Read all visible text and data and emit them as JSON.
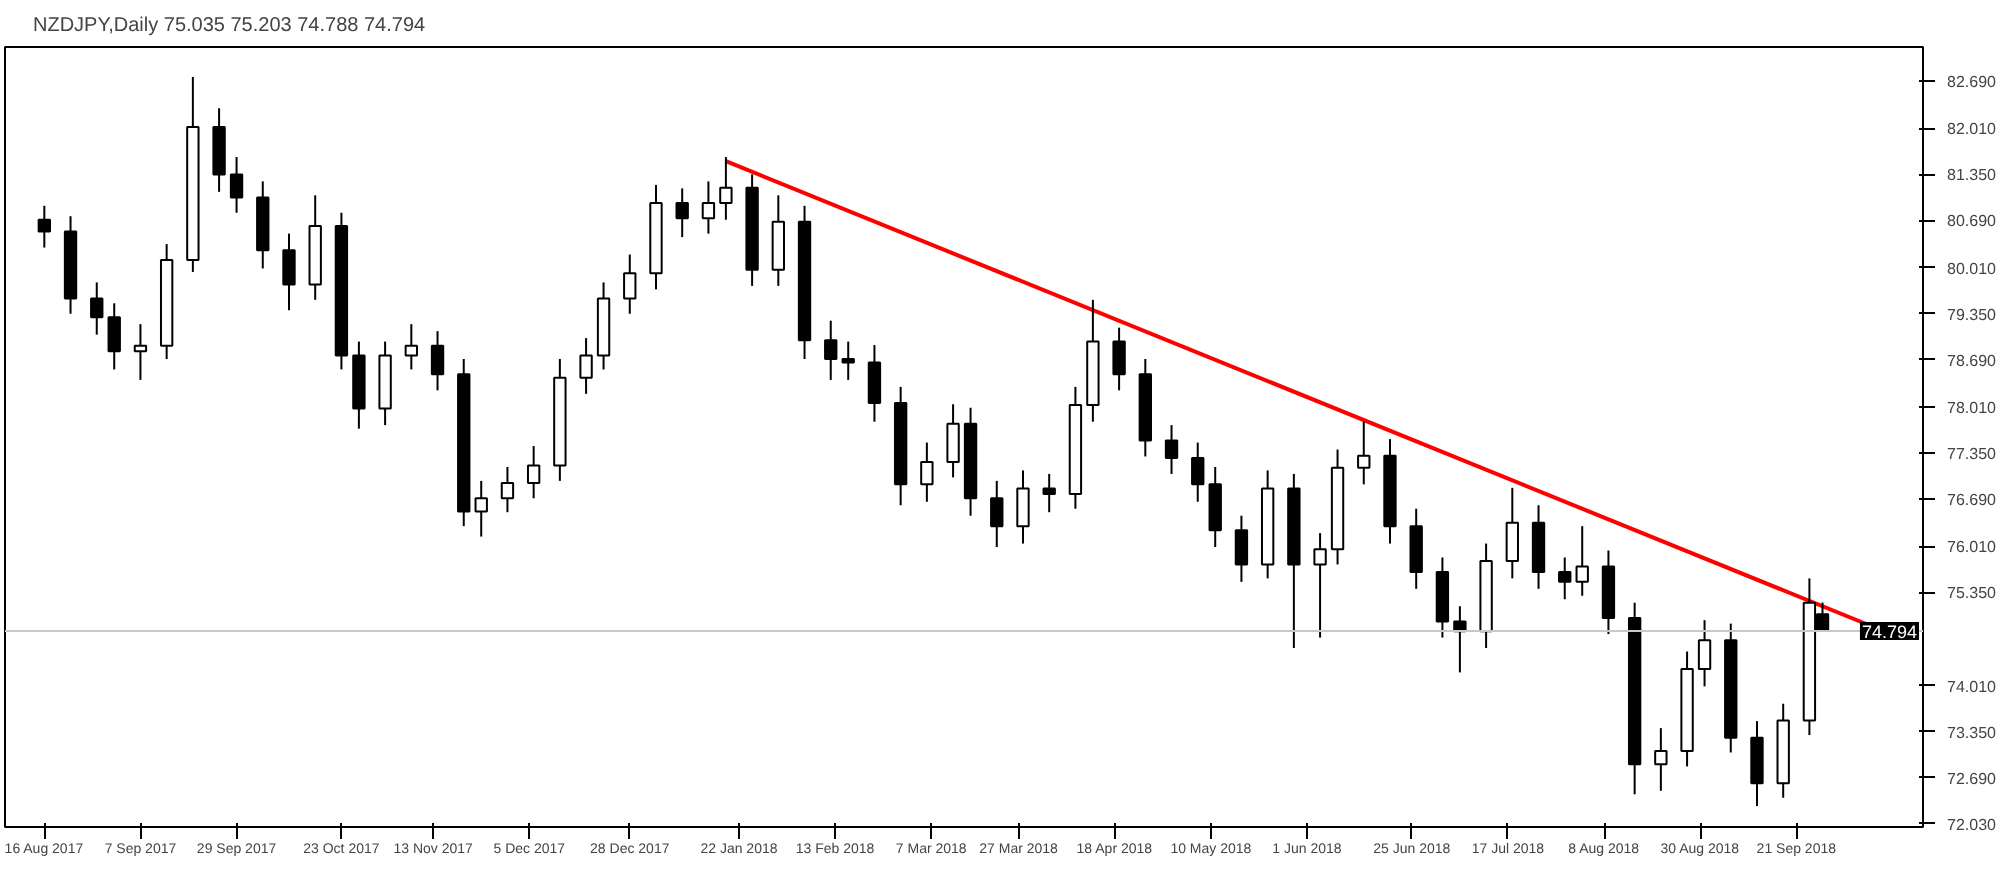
{
  "chart_data": {
    "type": "candlestick",
    "title": "NZDJPY,Daily 75.035 75.203 74.788 74.794",
    "x": [
      "2017-08-16",
      "2017-08-22",
      "2017-08-28",
      "2017-09-01",
      "2017-09-07",
      "2017-09-13",
      "2017-09-19",
      "2017-09-25",
      "2017-09-29",
      "2017-10-05",
      "2017-10-11",
      "2017-10-17",
      "2017-10-23",
      "2017-10-27",
      "2017-11-02",
      "2017-11-08",
      "2017-11-14",
      "2017-11-20",
      "2017-11-24",
      "2017-11-30",
      "2017-12-06",
      "2017-12-12",
      "2017-12-18",
      "2017-12-22",
      "2017-12-28",
      "2018-01-03",
      "2018-01-09",
      "2018-01-15",
      "2018-01-19",
      "2018-01-25",
      "2018-01-31",
      "2018-02-06",
      "2018-02-12",
      "2018-02-16",
      "2018-02-22",
      "2018-02-28",
      "2018-03-06",
      "2018-03-12",
      "2018-03-16",
      "2018-03-22",
      "2018-03-28",
      "2018-04-03",
      "2018-04-09",
      "2018-04-13",
      "2018-04-19",
      "2018-04-25",
      "2018-05-01",
      "2018-05-07",
      "2018-05-11",
      "2018-05-17",
      "2018-05-23",
      "2018-05-29",
      "2018-06-04",
      "2018-06-08",
      "2018-06-14",
      "2018-06-20",
      "2018-06-26",
      "2018-07-02",
      "2018-07-06",
      "2018-07-12",
      "2018-07-18",
      "2018-07-24",
      "2018-07-30",
      "2018-08-03",
      "2018-08-09",
      "2018-08-15",
      "2018-08-21",
      "2018-08-27",
      "2018-08-31",
      "2018-09-06",
      "2018-09-12",
      "2018-09-18",
      "2018-09-24",
      "2018-09-27"
    ],
    "ohlc": [
      [
        80.7,
        80.9,
        80.3,
        80.53
      ],
      [
        80.53,
        80.75,
        79.35,
        79.57
      ],
      [
        79.57,
        79.8,
        79.05,
        79.3
      ],
      [
        79.3,
        79.5,
        78.55,
        78.81
      ],
      [
        78.81,
        79.2,
        78.4,
        78.89
      ],
      [
        78.89,
        80.35,
        78.7,
        80.12
      ],
      [
        80.12,
        82.75,
        79.95,
        82.03
      ],
      [
        82.03,
        82.3,
        81.1,
        81.35
      ],
      [
        81.35,
        81.6,
        80.8,
        81.02
      ],
      [
        81.02,
        81.25,
        80.0,
        80.26
      ],
      [
        80.26,
        80.5,
        79.4,
        79.77
      ],
      [
        79.77,
        81.05,
        79.55,
        80.61
      ],
      [
        80.61,
        80.8,
        78.55,
        78.75
      ],
      [
        78.75,
        78.95,
        77.7,
        77.99
      ],
      [
        77.99,
        78.95,
        77.75,
        78.75
      ],
      [
        78.75,
        79.2,
        78.55,
        78.89
      ],
      [
        78.89,
        79.1,
        78.25,
        78.48
      ],
      [
        78.48,
        78.7,
        76.3,
        76.51
      ],
      [
        76.51,
        76.95,
        76.15,
        76.7
      ],
      [
        76.7,
        77.15,
        76.5,
        76.92
      ],
      [
        76.92,
        77.45,
        76.7,
        77.17
      ],
      [
        77.17,
        78.7,
        76.95,
        78.43
      ],
      [
        78.43,
        79.0,
        78.2,
        78.75
      ],
      [
        78.75,
        79.8,
        78.55,
        79.57
      ],
      [
        79.57,
        80.2,
        79.35,
        79.93
      ],
      [
        79.93,
        81.2,
        79.7,
        80.94
      ],
      [
        80.94,
        81.15,
        80.45,
        80.72
      ],
      [
        80.72,
        81.25,
        80.5,
        80.94
      ],
      [
        80.94,
        81.6,
        80.7,
        81.16
      ],
      [
        81.16,
        81.35,
        79.75,
        79.98
      ],
      [
        79.98,
        81.05,
        79.75,
        80.67
      ],
      [
        80.67,
        80.9,
        78.7,
        78.97
      ],
      [
        78.97,
        79.25,
        78.4,
        78.7
      ],
      [
        78.7,
        78.95,
        78.4,
        78.65
      ],
      [
        78.65,
        78.9,
        77.8,
        78.07
      ],
      [
        78.07,
        78.3,
        76.6,
        76.9
      ],
      [
        76.9,
        77.5,
        76.65,
        77.22
      ],
      [
        77.22,
        78.05,
        77.0,
        77.77
      ],
      [
        77.77,
        78.0,
        76.45,
        76.7
      ],
      [
        76.7,
        76.95,
        76.0,
        76.3
      ],
      [
        76.3,
        77.1,
        76.05,
        76.84
      ],
      [
        76.84,
        77.05,
        76.5,
        76.76
      ],
      [
        76.76,
        78.3,
        76.55,
        78.04
      ],
      [
        78.04,
        79.55,
        77.8,
        78.95
      ],
      [
        78.95,
        79.15,
        78.25,
        78.48
      ],
      [
        78.48,
        78.7,
        77.3,
        77.53
      ],
      [
        77.53,
        77.75,
        77.05,
        77.28
      ],
      [
        77.28,
        77.5,
        76.65,
        76.9
      ],
      [
        76.9,
        77.15,
        76.0,
        76.24
      ],
      [
        76.24,
        76.45,
        75.5,
        75.75
      ],
      [
        75.75,
        77.1,
        75.55,
        76.84
      ],
      [
        76.84,
        77.05,
        74.55,
        75.75
      ],
      [
        75.75,
        76.2,
        74.7,
        75.97
      ],
      [
        75.97,
        77.4,
        75.75,
        77.14
      ],
      [
        77.14,
        77.8,
        76.9,
        77.31
      ],
      [
        77.31,
        77.55,
        76.05,
        76.3
      ],
      [
        76.3,
        76.55,
        75.4,
        75.64
      ],
      [
        75.64,
        75.85,
        74.7,
        74.93
      ],
      [
        74.93,
        75.15,
        74.2,
        74.79
      ],
      [
        74.79,
        76.05,
        74.55,
        75.8
      ],
      [
        75.8,
        76.85,
        75.55,
        76.35
      ],
      [
        76.35,
        76.6,
        75.4,
        75.64
      ],
      [
        75.64,
        75.85,
        75.25,
        75.5
      ],
      [
        75.5,
        76.3,
        75.3,
        75.72
      ],
      [
        75.72,
        75.95,
        74.75,
        74.98
      ],
      [
        74.98,
        75.2,
        72.45,
        72.88
      ],
      [
        72.88,
        73.4,
        72.5,
        73.07
      ],
      [
        73.07,
        74.5,
        72.85,
        74.25
      ],
      [
        74.25,
        74.95,
        74.0,
        74.66
      ],
      [
        74.66,
        74.9,
        73.05,
        73.26
      ],
      [
        73.26,
        73.5,
        72.28,
        72.61
      ],
      [
        72.61,
        73.75,
        72.4,
        73.51
      ],
      [
        73.51,
        75.55,
        73.3,
        75.2
      ],
      [
        75.035,
        75.203,
        74.788,
        74.794
      ]
    ],
    "series": [
      {
        "type": "line",
        "color": "#ff0000",
        "x": [
          "2018-01-19",
          "2018-10-08"
        ],
        "values": [
          81.54,
          74.87
        ]
      }
    ],
    "xlim": [
      "2017-08-07",
      "2018-10-20"
    ],
    "xticks": [
      {
        "value": "2017-08-16",
        "label": "16 Aug 2017"
      },
      {
        "value": "2017-09-07",
        "label": "7 Sep 2017"
      },
      {
        "value": "2017-09-29",
        "label": "29 Sep 2017"
      },
      {
        "value": "2017-10-23",
        "label": "23 Oct 2017"
      },
      {
        "value": "2017-11-13",
        "label": "13 Nov 2017"
      },
      {
        "value": "2017-12-05",
        "label": "5 Dec 2017"
      },
      {
        "value": "2017-12-28",
        "label": "28 Dec 2017"
      },
      {
        "value": "2018-01-22",
        "label": "22 Jan 2018"
      },
      {
        "value": "2018-02-13",
        "label": "13 Feb 2018"
      },
      {
        "value": "2018-03-07",
        "label": "7 Mar 2018"
      },
      {
        "value": "2018-03-27",
        "label": "27 Mar 2018"
      },
      {
        "value": "2018-04-18",
        "label": "18 Apr 2018"
      },
      {
        "value": "2018-05-10",
        "label": "10 May 2018"
      },
      {
        "value": "2018-06-01",
        "label": "1 Jun 2018"
      },
      {
        "value": "2018-06-25",
        "label": "25 Jun 2018"
      },
      {
        "value": "2018-07-17",
        "label": "17 Jul 2018"
      },
      {
        "value": "2018-08-08",
        "label": "8 Aug 2018"
      },
      {
        "value": "2018-08-30",
        "label": "30 Aug 2018"
      },
      {
        "value": "2018-09-21",
        "label": "21 Sep 2018"
      }
    ],
    "ylim": [
      71.98,
      83.18
    ],
    "yticks": [
      {
        "value": 72.03,
        "label": "72.030"
      },
      {
        "value": 72.69,
        "label": "72.690"
      },
      {
        "value": 73.35,
        "label": "73.350"
      },
      {
        "value": 74.01,
        "label": "74.010"
      },
      {
        "value": 75.35,
        "label": "75.350"
      },
      {
        "value": 76.01,
        "label": "76.010"
      },
      {
        "value": 76.69,
        "label": "76.690"
      },
      {
        "value": 77.35,
        "label": "77.350"
      },
      {
        "value": 78.01,
        "label": "78.010"
      },
      {
        "value": 78.69,
        "label": "78.690"
      },
      {
        "value": 79.35,
        "label": "79.350"
      },
      {
        "value": 80.01,
        "label": "80.010"
      },
      {
        "value": 80.69,
        "label": "80.690"
      },
      {
        "value": 81.35,
        "label": "81.350"
      },
      {
        "value": 82.01,
        "label": "82.010"
      },
      {
        "value": 82.69,
        "label": "82.690"
      }
    ],
    "ref_lines": [
      {
        "axis": "y",
        "value": 74.794,
        "label": "74.794",
        "color": "#c8c8c8"
      }
    ],
    "grid": false
  }
}
